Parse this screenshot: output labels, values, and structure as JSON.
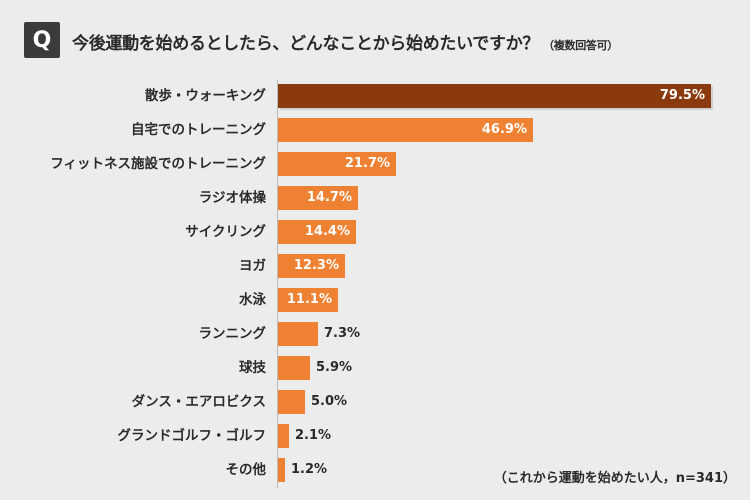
{
  "header": {
    "badge": "Q",
    "question": "今後運動を始めるとしたら、どんなことから始めたいですか？",
    "note": "（複数回答可）"
  },
  "footnote": "（これから運動を始めたい人，n=341）",
  "chart_data": {
    "type": "bar",
    "orientation": "horizontal",
    "title": "今後運動を始めるとしたら、どんなことから始めたいですか？",
    "unit": "%",
    "xlim": [
      0,
      80
    ],
    "grid": false,
    "categories": [
      "散歩・ウォーキング",
      "自宅でのトレーニング",
      "フィットネス施設でのトレーニング",
      "ラジオ体操",
      "サイクリング",
      "ヨガ",
      "水泳",
      "ランニング",
      "球技",
      "ダンス・エアロビクス",
      "グランドゴルフ・ゴルフ",
      "その他"
    ],
    "values": [
      79.5,
      46.9,
      21.7,
      14.7,
      14.4,
      12.3,
      11.1,
      7.3,
      5.9,
      5.0,
      2.1,
      1.2
    ],
    "value_labels": [
      "79.5%",
      "46.9%",
      "21.7%",
      "14.7%",
      "14.4%",
      "12.3%",
      "11.1%",
      "7.3%",
      "5.9%",
      "5.0%",
      "2.1%",
      "1.2%"
    ],
    "colors": {
      "highlight": "#8a3a0c",
      "default": "#ef8232"
    }
  }
}
